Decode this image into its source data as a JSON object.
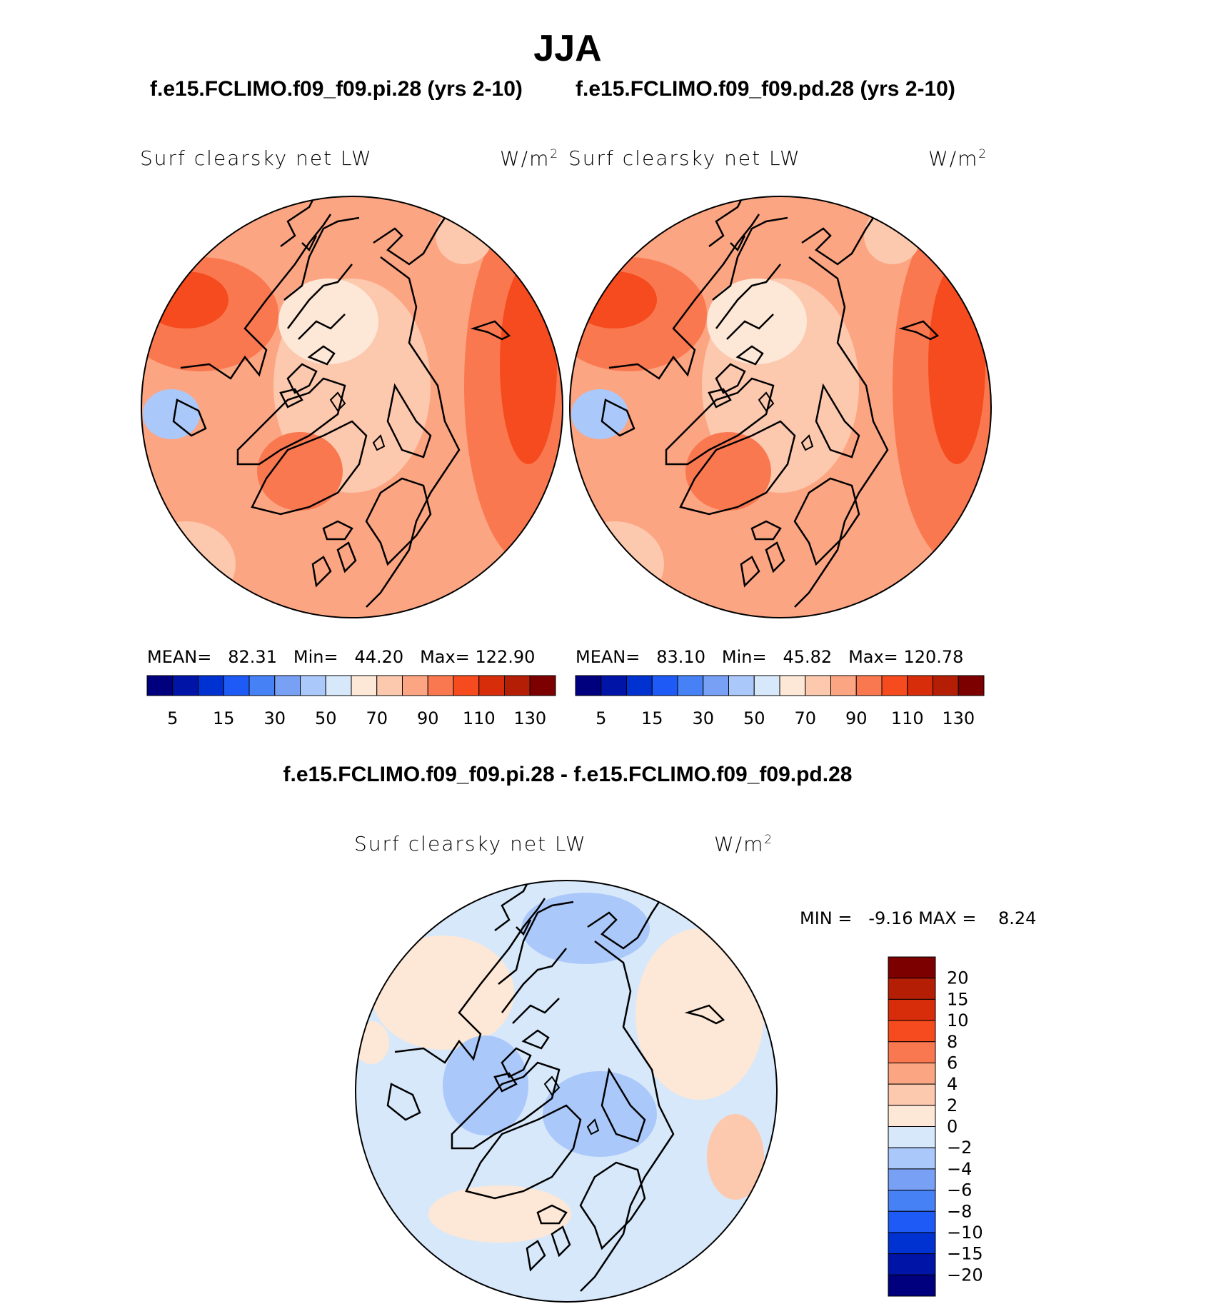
{
  "figure": {
    "season": "JJA",
    "case_pi": "f.e15.FCLIMO.f09_f09.pi.28 (yrs 2-10)",
    "case_pd": "f.e15.FCLIMO.f09_f09.pd.28 (yrs 2-10)",
    "diff_title": "f.e15.FCLIMO.f09_f09.pi.28 - f.e15.FCLIMO.f09_f09.pd.28",
    "variable": "Surf clearsky net LW",
    "units_base": "W/m",
    "units_exp": "2"
  },
  "chart_data": [
    {
      "type": "heatmap",
      "projection": "north-polar-stereographic",
      "title": "Surf clearsky net LW",
      "units": "W/m2",
      "case": "f.e15.FCLIMO.f09_f09.pi.28 (yrs 2-10)",
      "stats": {
        "mean_label": "MEAN=",
        "mean": "82.31",
        "min_label": "Min=",
        "min": "44.20",
        "max_label": "Max=",
        "max": "122.90"
      },
      "contour_levels": [
        5,
        10,
        15,
        20,
        30,
        40,
        50,
        60,
        70,
        80,
        90,
        100,
        110,
        120,
        130
      ],
      "tick_labels": [
        "5",
        "15",
        "30",
        "50",
        "70",
        "90",
        "110",
        "130"
      ]
    },
    {
      "type": "heatmap",
      "projection": "north-polar-stereographic",
      "title": "Surf clearsky net LW",
      "units": "W/m2",
      "case": "f.e15.FCLIMO.f09_f09.pd.28 (yrs 2-10)",
      "stats": {
        "mean_label": "MEAN=",
        "mean": "83.10",
        "min_label": "Min=",
        "min": "45.82",
        "max_label": "Max=",
        "max": "120.78"
      },
      "contour_levels": [
        5,
        10,
        15,
        20,
        30,
        40,
        50,
        60,
        70,
        80,
        90,
        100,
        110,
        120,
        130
      ],
      "tick_labels": [
        "5",
        "15",
        "30",
        "50",
        "70",
        "90",
        "110",
        "130"
      ]
    },
    {
      "type": "heatmap",
      "projection": "north-polar-stereographic",
      "title": "Surf clearsky net LW",
      "units": "W/m2",
      "case": "f.e15.FCLIMO.f09_f09.pi.28 - f.e15.FCLIMO.f09_f09.pd.28",
      "stats": {
        "min_label": "MIN =",
        "min": "-9.16",
        "max_label": "MAX =",
        "max": "8.24"
      },
      "contour_levels": [
        -20,
        -15,
        -10,
        -8,
        -6,
        -4,
        -2,
        0,
        2,
        4,
        6,
        8,
        10,
        15,
        20
      ],
      "tick_labels": [
        "20",
        "15",
        "10",
        "8",
        "6",
        "4",
        "2",
        "0",
        "−2",
        "−4",
        "−6",
        "−8",
        "−10",
        "−15",
        "−20"
      ]
    }
  ],
  "colorbar_colors": [
    "#00007f",
    "#0014a8",
    "#0032d2",
    "#1e5af5",
    "#4682f5",
    "#78a0f5",
    "#aac8fa",
    "#d7e8fa",
    "#fde7d6",
    "#fcc8ae",
    "#fca582",
    "#fa7850",
    "#f54b1e",
    "#d72d0a",
    "#b41e05",
    "#7d0000"
  ]
}
